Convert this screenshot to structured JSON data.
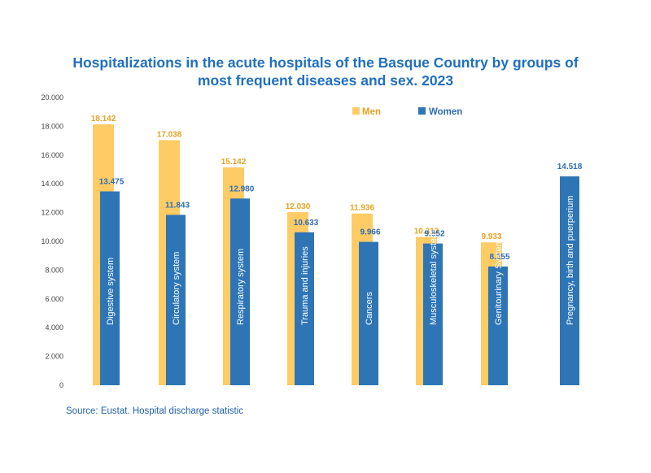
{
  "chart_data": {
    "type": "bar",
    "title_lines": [
      "Hospitalizations in the acute hospitals of the Basque Country by groups of",
      "most frequent diseases and sex. 2023"
    ],
    "categories": [
      "Digestive system",
      "Circulatory system",
      "Respiratory system",
      "Trauma and injuries",
      "Cancers",
      "Musculoskeletal system",
      "Genitourinary System",
      "Pregnancy, birth and puerperium"
    ],
    "series": [
      {
        "name": "Men",
        "color": "#ffcb65",
        "values": [
          18142,
          17038,
          15142,
          12030,
          11936,
          10313,
          9933,
          null
        ],
        "labels": [
          "18.142",
          "17.038",
          "15.142",
          "12.030",
          "11.936",
          "10.313",
          "9.933",
          null
        ]
      },
      {
        "name": "Women",
        "color": "#2e75b6",
        "values": [
          13475,
          11843,
          12980,
          10633,
          9966,
          9852,
          8255,
          14518
        ],
        "labels": [
          "13.475",
          "11.843",
          "12.980",
          "10.633",
          "9.966",
          "9.852",
          "8.255",
          "14.518"
        ]
      }
    ],
    "ylim": [
      0,
      20000
    ],
    "yticks": [
      0,
      2000,
      4000,
      6000,
      8000,
      10000,
      12000,
      14000,
      16000,
      18000,
      20000
    ],
    "ytick_labels": [
      "0",
      "2.000",
      "4.000",
      "6.000",
      "8.000",
      "10.000",
      "12.000",
      "14.000",
      "16.000",
      "18.000",
      "20.000"
    ],
    "grid": false,
    "legend": "top-right",
    "xlabel": "",
    "ylabel": ""
  },
  "source": "Source: Eustat. Hospital discharge statistic"
}
